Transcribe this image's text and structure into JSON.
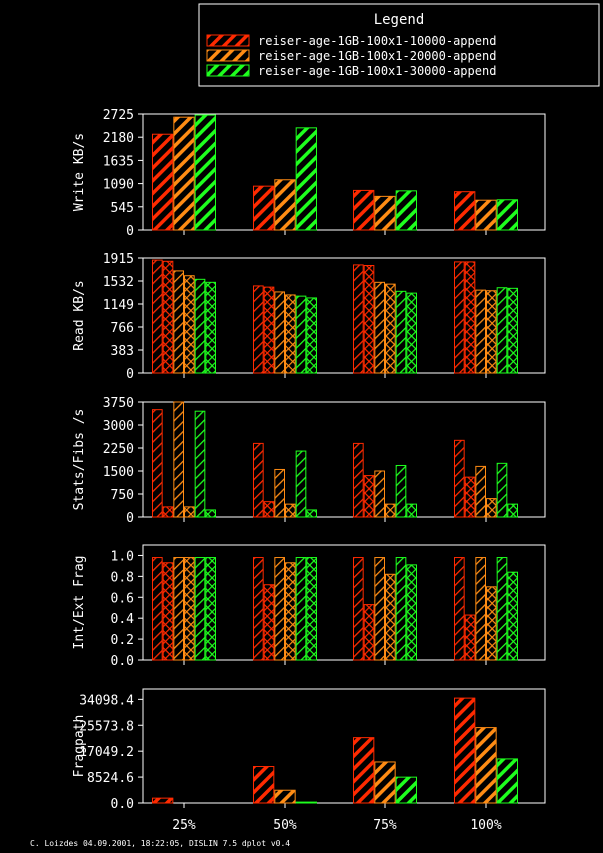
{
  "legend": {
    "title": "Legend",
    "entries": [
      {
        "label": "reiser-age-1GB-100x1-10000-append",
        "color": "#ff2a00"
      },
      {
        "label": "reiser-age-1GB-100x1-20000-append",
        "color": "#ff8c14"
      },
      {
        "label": "reiser-age-1GB-100x1-30000-append",
        "color": "#1eff1e"
      }
    ]
  },
  "footer": "C. Loizdes 04.09.2001, 18:22:05, DISLIN 7.5 dplot v0.4",
  "categories": [
    "25%",
    "50%",
    "75%",
    "100%"
  ],
  "chart_data": [
    {
      "type": "bar",
      "ylabel": "Write KB/s",
      "yticks": [
        "0",
        "545",
        "1090",
        "1635",
        "2180",
        "2725"
      ],
      "ylim": [
        0,
        2725
      ],
      "categories": [
        "25%",
        "50%",
        "75%",
        "100%"
      ],
      "series": [
        {
          "name": "reiser-age-1GB-100x1-10000-append",
          "values": [
            2250,
            1030,
            930,
            900
          ]
        },
        {
          "name": "reiser-age-1GB-100x1-20000-append",
          "values": [
            2650,
            1180,
            790,
            700
          ]
        },
        {
          "name": "reiser-age-1GB-100x1-30000-append",
          "values": [
            2700,
            2400,
            920,
            710
          ]
        }
      ]
    },
    {
      "type": "bar",
      "ylabel": "Read KB/s",
      "yticks": [
        "0",
        "383",
        "766",
        "1149",
        "1532",
        "1915"
      ],
      "ylim": [
        0,
        1915
      ],
      "categories": [
        "25%",
        "50%",
        "75%",
        "100%"
      ],
      "series": [
        {
          "name": "reiser-age-1GB-100x1-10000-append",
          "values": [
            1880,
            1450,
            1800,
            1850
          ]
        },
        {
          "name": "reiser-age-1GB-100x1-10000-append",
          "values": [
            1860,
            1430,
            1790,
            1850
          ]
        },
        {
          "name": "reiser-age-1GB-100x1-20000-append",
          "values": [
            1700,
            1350,
            1510,
            1380
          ]
        },
        {
          "name": "reiser-age-1GB-100x1-20000-append",
          "values": [
            1620,
            1300,
            1480,
            1370
          ]
        },
        {
          "name": "reiser-age-1GB-100x1-30000-append",
          "values": [
            1560,
            1280,
            1360,
            1420
          ]
        },
        {
          "name": "reiser-age-1GB-100x1-30000-append",
          "values": [
            1510,
            1250,
            1330,
            1410
          ]
        }
      ]
    },
    {
      "type": "bar",
      "ylabel": "Stats/Fibs /s",
      "yticks": [
        "0",
        "750",
        "1500",
        "2250",
        "3000",
        "3750"
      ],
      "ylim": [
        0,
        3750
      ],
      "categories": [
        "25%",
        "50%",
        "75%",
        "100%"
      ],
      "series": [
        {
          "name": "reiser-age-1GB-100x1-10000-append",
          "values": [
            3500,
            2400,
            2400,
            2500
          ]
        },
        {
          "name": "reiser-age-1GB-100x1-10000-append",
          "values": [
            330,
            500,
            1350,
            1300
          ]
        },
        {
          "name": "reiser-age-1GB-100x1-20000-append",
          "values": [
            3750,
            1550,
            1500,
            1650
          ]
        },
        {
          "name": "reiser-age-1GB-100x1-20000-append",
          "values": [
            330,
            420,
            420,
            600
          ]
        },
        {
          "name": "reiser-age-1GB-100x1-30000-append",
          "values": [
            3450,
            2150,
            1680,
            1750
          ]
        },
        {
          "name": "reiser-age-1GB-100x1-30000-append",
          "values": [
            230,
            230,
            420,
            420
          ]
        }
      ]
    },
    {
      "type": "bar",
      "ylabel": "Int/Ext Frag",
      "yticks": [
        "0.0",
        "0.2",
        "0.4",
        "0.6",
        "0.8",
        "1.0"
      ],
      "ylim": [
        0,
        1.1
      ],
      "categories": [
        "25%",
        "50%",
        "75%",
        "100%"
      ],
      "series": [
        {
          "name": "reiser-age-1GB-100x1-10000-append",
          "values": [
            0.98,
            0.98,
            0.98,
            0.98
          ]
        },
        {
          "name": "reiser-age-1GB-100x1-10000-append",
          "values": [
            0.93,
            0.72,
            0.53,
            0.43
          ]
        },
        {
          "name": "reiser-age-1GB-100x1-20000-append",
          "values": [
            0.98,
            0.98,
            0.98,
            0.98
          ]
        },
        {
          "name": "reiser-age-1GB-100x1-20000-append",
          "values": [
            0.98,
            0.93,
            0.82,
            0.7
          ]
        },
        {
          "name": "reiser-age-1GB-100x1-30000-append",
          "values": [
            0.98,
            0.98,
            0.98,
            0.98
          ]
        },
        {
          "name": "reiser-age-1GB-100x1-30000-append",
          "values": [
            0.98,
            0.98,
            0.91,
            0.84
          ]
        }
      ]
    },
    {
      "type": "bar",
      "ylabel": "Fragpath",
      "yticks": [
        "0.0",
        "8524.6",
        "17049.2",
        "25573.8",
        "34098.4"
      ],
      "ylim": [
        0,
        37500
      ],
      "categories": [
        "25%",
        "50%",
        "75%",
        "100%"
      ],
      "series": [
        {
          "name": "reiser-age-1GB-100x1-10000-append",
          "values": [
            1600,
            12000,
            21500,
            34500
          ]
        },
        {
          "name": "reiser-age-1GB-100x1-20000-append",
          "values": [
            0,
            4200,
            13500,
            24800
          ]
        },
        {
          "name": "reiser-age-1GB-100x1-30000-append",
          "values": [
            0,
            300,
            8500,
            14500
          ]
        }
      ]
    }
  ]
}
